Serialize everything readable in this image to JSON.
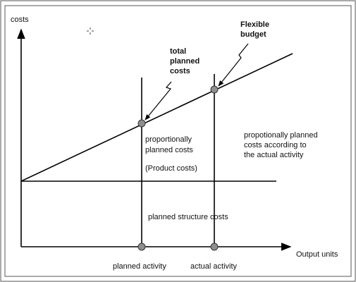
{
  "axes": {
    "y_label": "costs",
    "x_label": "Output units"
  },
  "annotations": {
    "total_planned_costs": [
      "total",
      "planned",
      "costs"
    ],
    "flexible_budget": [
      "Flexible",
      "budget"
    ],
    "proportional_planned": [
      "proportionally",
      "planned costs"
    ],
    "product_costs": "(Product costs)",
    "proportional_actual": [
      "propotionally planned",
      "costs according to",
      "the actual activity"
    ],
    "planned_structure": "planned structure costs"
  },
  "ticks": {
    "planned_activity": "planned activity",
    "actual_activity": "actual activity"
  },
  "cursor_icon": "crosshair-cursor-icon"
}
